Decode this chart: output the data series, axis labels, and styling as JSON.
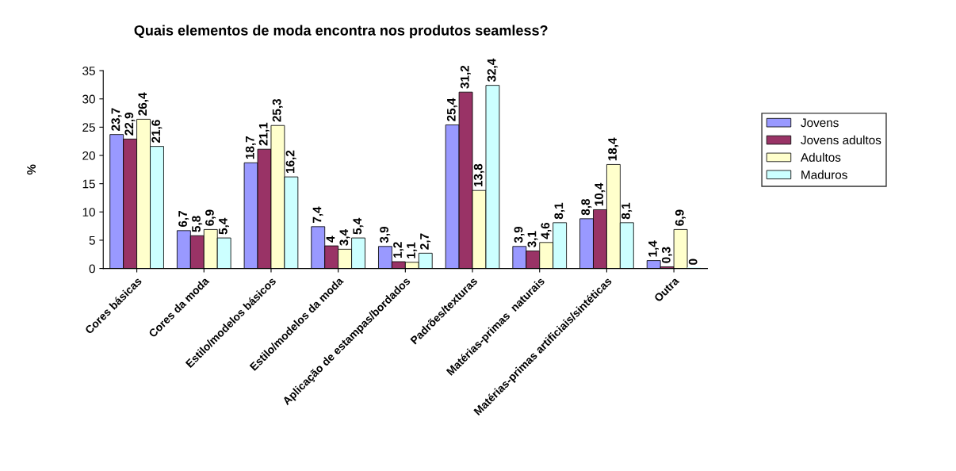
{
  "chart_data": {
    "type": "bar",
    "title": "Quais elementos de moda encontra nos produtos seamless?",
    "ylabel": "%",
    "categories": [
      "Cores básicas",
      "Cores da moda",
      "Estilo/modelos básicos",
      "Estilo/modelos da moda",
      "Aplicação de estampas/bordados",
      "Padrões/texturas",
      "Matérias-primas  naturais",
      "Matérias-primas artificiais/sintéticas",
      "Outra"
    ],
    "series": [
      {
        "name": "Jovens",
        "color": "#9999ff",
        "values": [
          23.7,
          6.7,
          18.7,
          7.4,
          3.9,
          25.4,
          3.9,
          8.8,
          1.4
        ],
        "value_labels": [
          "23,7",
          "6,7",
          "18,7",
          "7,4",
          "3,9",
          "25,4",
          "3,9",
          "8,8",
          "1,4"
        ]
      },
      {
        "name": "Jovens adultos",
        "color": "#993366",
        "values": [
          22.9,
          5.8,
          21.1,
          4,
          1.2,
          31.2,
          3.1,
          10.4,
          0.3
        ],
        "value_labels": [
          "22,9",
          "5,8",
          "21,1",
          "4",
          "1,2",
          "31,2",
          "3,1",
          "10,4",
          "0,3"
        ]
      },
      {
        "name": "Adultos",
        "color": "#ffffcc",
        "values": [
          26.4,
          6.9,
          25.3,
          3.4,
          1.1,
          13.8,
          4.6,
          18.4,
          6.9
        ],
        "value_labels": [
          "26,4",
          "6,9",
          "25,3",
          "3,4",
          "1,1",
          "13,8",
          "4,6",
          "18,4",
          "6,9"
        ]
      },
      {
        "name": "Maduros",
        "color": "#ccffff",
        "values": [
          21.6,
          5.4,
          16.2,
          5.4,
          2.7,
          32.4,
          8.1,
          8.1,
          0
        ],
        "value_labels": [
          "21,6",
          "5,4",
          "16,2",
          "5,4",
          "2,7",
          "32,4",
          "8,1",
          "8,1",
          "0"
        ]
      }
    ],
    "ylim": [
      0,
      35
    ],
    "yticks": [
      0,
      5,
      10,
      15,
      20,
      25,
      30,
      35
    ],
    "grid": false,
    "legend": "right"
  }
}
